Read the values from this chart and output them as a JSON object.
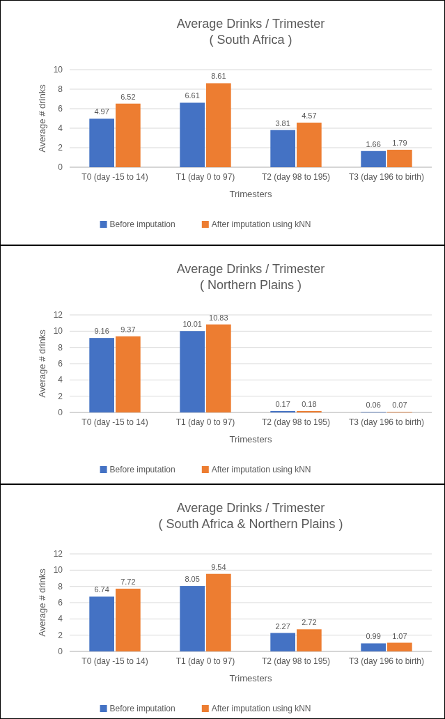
{
  "chart_data": [
    {
      "type": "bar",
      "title": "Average Drinks / Trimester\n( South Africa )",
      "xlabel": "Trimesters",
      "ylabel": "Average # drinks",
      "categories": [
        "T0 (day -15 to 14)",
        "T1 (day 0 to 97)",
        "T2 (day 98 to 195)",
        "T3 (day 196 to birth)"
      ],
      "series": [
        {
          "name": "Before imputation",
          "color": "#4472c4",
          "values": [
            4.97,
            6.61,
            3.81,
            1.66
          ]
        },
        {
          "name": "After imputation using kNN",
          "color": "#ed7d31",
          "values": [
            6.52,
            8.61,
            4.57,
            1.79
          ]
        }
      ],
      "ylim": [
        0,
        10
      ],
      "yticks": [
        0,
        2,
        4,
        6,
        8,
        10
      ],
      "grid": "y",
      "legend": "bottom",
      "data_labels": true
    },
    {
      "type": "bar",
      "title": "Average Drinks / Trimester\n( Northern Plains )",
      "xlabel": "Trimesters",
      "ylabel": "Average # drinks",
      "categories": [
        "T0 (day -15 to 14)",
        "T1 (day 0 to 97)",
        "T2 (day 98 to 195)",
        "T3 (day 196 to birth)"
      ],
      "series": [
        {
          "name": "Before imputation",
          "color": "#4472c4",
          "values": [
            9.16,
            10.01,
            0.17,
            0.06
          ]
        },
        {
          "name": "After imputation using kNN",
          "color": "#ed7d31",
          "values": [
            9.37,
            10.83,
            0.18,
            0.07
          ]
        }
      ],
      "ylim": [
        0,
        12
      ],
      "yticks": [
        0,
        2,
        4,
        6,
        8,
        10,
        12
      ],
      "grid": "y",
      "legend": "bottom",
      "data_labels": true
    },
    {
      "type": "bar",
      "title": "Average Drinks / Trimester\n( South Africa & Northern Plains )",
      "xlabel": "Trimesters",
      "ylabel": "Average # drinks",
      "categories": [
        "T0 (day -15 to 14)",
        "T1 (day 0 to 97)",
        "T2 (day 98 to 195)",
        "T3 (day 196 to birth)"
      ],
      "series": [
        {
          "name": "Before imputation",
          "color": "#4472c4",
          "values": [
            6.74,
            8.05,
            2.27,
            0.99
          ]
        },
        {
          "name": "After imputation using kNN",
          "color": "#ed7d31",
          "values": [
            7.72,
            9.54,
            2.72,
            1.07
          ]
        }
      ],
      "ylim": [
        0,
        12
      ],
      "yticks": [
        0,
        2,
        4,
        6,
        8,
        10,
        12
      ],
      "grid": "y",
      "legend": "bottom",
      "data_labels": true
    }
  ]
}
